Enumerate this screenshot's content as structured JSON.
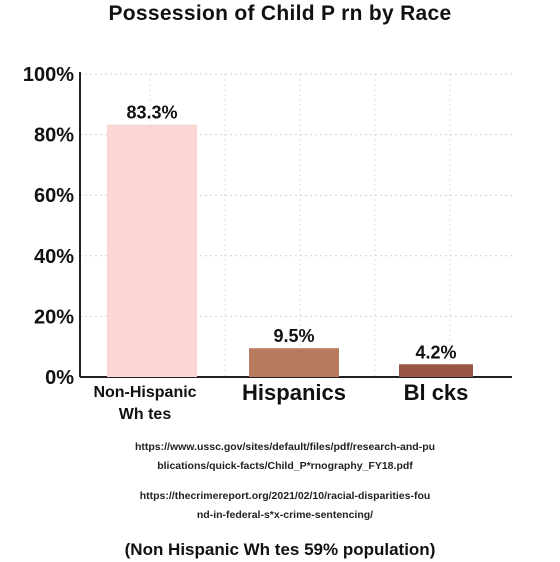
{
  "chart_data": {
    "type": "bar",
    "title": "Possession of Child P rn by Race",
    "categories": [
      [
        "Non-Hispanic",
        "Wh tes"
      ],
      [
        "Hispanics"
      ],
      [
        "Bl  cks"
      ]
    ],
    "values": [
      83.3,
      9.5,
      4.2
    ],
    "data_labels": [
      "83.3%",
      "9.5%",
      "4.2%"
    ],
    "colors": [
      "#fbd6d2",
      "#b87a5e",
      "#9a5645"
    ],
    "yticks": [
      "0%",
      "20%",
      "40%",
      "60%",
      "80%",
      "100%"
    ],
    "ylim": [
      0,
      100
    ],
    "grid": true
  },
  "sources": {
    "line1": "https://www.ussc.gov/sites/default/files/pdf/research-and-pu",
    "line2": "blications/quick-facts/Child_P*rnography_FY18.pdf",
    "line3": "https://thecrimereport.org/2021/02/10/racial-disparities-fou",
    "line4": "nd-in-federal-s*x-crime-sentencing/"
  },
  "footnote": "(Non Hispanic Wh tes 59% population)"
}
